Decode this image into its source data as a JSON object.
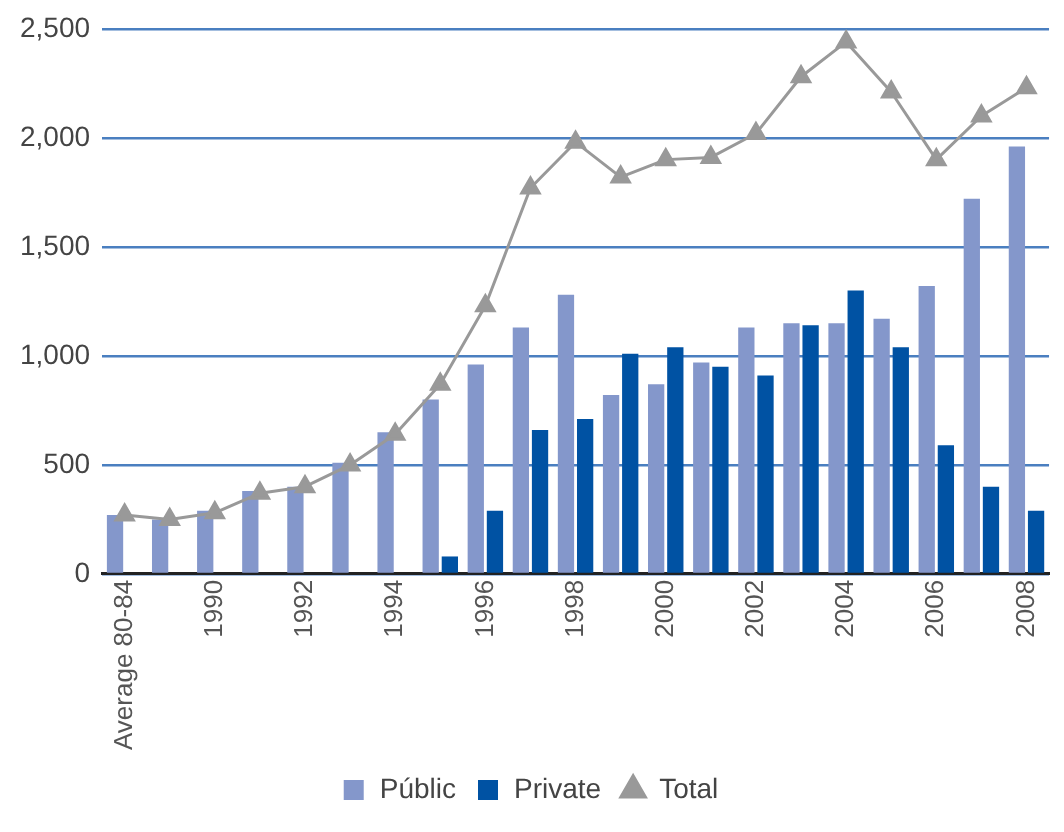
{
  "chart_data": {
    "type": "bar",
    "categories": [
      "Average 80-84",
      null,
      "1990",
      null,
      "1992",
      null,
      "1994",
      null,
      "1996",
      null,
      "1998",
      null,
      "2000",
      null,
      "2002",
      null,
      "2004",
      null,
      "2006",
      null,
      "2008"
    ],
    "series": [
      {
        "name": "Públic",
        "color": "#8497cb",
        "values": [
          270,
          250,
          290,
          380,
          400,
          510,
          650,
          800,
          960,
          1130,
          1280,
          820,
          870,
          970,
          1130,
          1150,
          1150,
          1170,
          1320,
          1720,
          1960
        ]
      },
      {
        "name": "Private",
        "color": "#0052a3",
        "values": [
          null,
          null,
          null,
          null,
          null,
          null,
          null,
          80,
          290,
          660,
          710,
          1010,
          1040,
          950,
          910,
          1140,
          1300,
          1040,
          590,
          400,
          290
        ]
      },
      {
        "name": "Total",
        "type": "line",
        "color": "#999999",
        "marker": "triangle",
        "values": [
          270,
          250,
          280,
          370,
          400,
          500,
          640,
          870,
          1230,
          1770,
          1980,
          1820,
          1900,
          1910,
          2020,
          2280,
          2440,
          2210,
          1900,
          2100,
          2230
        ]
      }
    ],
    "ylim": [
      0,
      2500
    ],
    "yticks": [
      0,
      500,
      {
        "value": 1000,
        "label": "1,000"
      },
      {
        "value": 1500,
        "label": "1,500"
      },
      {
        "value": 2000,
        "label": "2,000"
      },
      {
        "value": 2500,
        "label": "2,500"
      }
    ],
    "grid": "y",
    "legend": "bottom"
  }
}
